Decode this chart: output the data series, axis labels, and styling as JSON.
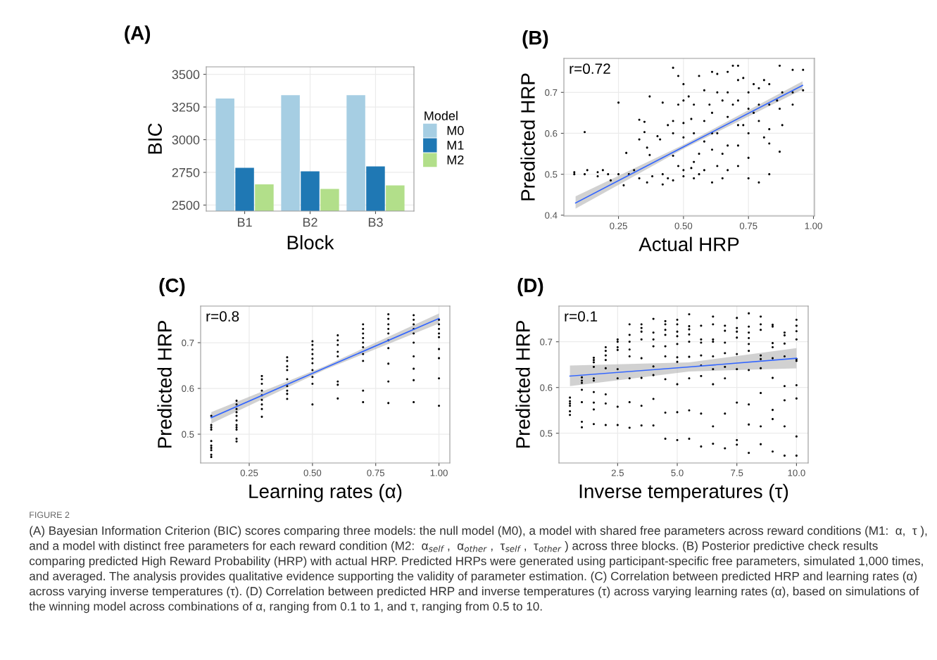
{
  "chart_data": [
    {
      "type": "bar",
      "title": "(A)",
      "xlabel": "Block",
      "ylabel": "BIC",
      "legend_title": "Model",
      "legend": "right",
      "grid": true,
      "categories": [
        "B1",
        "B2",
        "B3"
      ],
      "ylim": [
        2454,
        3557
      ],
      "yticks": [
        2500,
        2750,
        3000,
        3250,
        3500
      ],
      "series": [
        {
          "name": "M0",
          "color": "#a6cee3",
          "values": [
            3315,
            3340,
            3340
          ]
        },
        {
          "name": "M1",
          "color": "#1f78b4",
          "values": [
            2785,
            2758,
            2795
          ]
        },
        {
          "name": "M2",
          "color": "#b2df8a",
          "values": [
            2658,
            2624,
            2651
          ]
        }
      ],
      "annotations": [
        "FIGURE 2",
        "(A) Bayesian Information Criterion (BIC) scores comparing three models: the null model (M0), a model with shared free parameters across reward conditions (M1:  α,  τ ), and a model with distinct free parameters for each reward condition (M2:  α$_{self}$ ,  α$_{other}$ ,  τ$_{self}$ ,  τ$_{other}$ ) across three blocks. (B) Posterior predictive check results comparing predicted High Reward Probability (HRP) with actual HRP. Predicted HRPs were generated using participant-specific free parameters, simulated 1,000 times, and averaged. The analysis provides qualitative evidence supporting the validity of parameter estimation. (C) Correlation between predicted HRP and learning rates (α) across varying inverse temperatures (τ). (D) Correlation between predicted HRP and inverse temperatures (τ) across varying learning rates (α), based on simulations of the winning model across combinations of α, ranging from 0.1 to 1, and τ, ranging from 0.5 to 10."
      ]
    },
    {
      "type": "scatter",
      "title": "(B)",
      "xlabel": "Actual HRP",
      "ylabel": "Predicted HRP",
      "grid": true,
      "xlim": [
        0.04,
        1.004
      ],
      "xticks": [
        {
          "value": 0.25,
          "label": "0.25"
        },
        {
          "value": 0.5,
          "label": "0.50"
        },
        {
          "value": 0.75,
          "label": "0.75"
        },
        {
          "value": 1.0,
          "label": "1.00"
        }
      ],
      "ylim": [
        0.398,
        0.783
      ],
      "yticks": [
        0.4,
        0.5,
        0.6,
        0.7
      ],
      "series": [
        {
          "type": "scatter",
          "color": "#000000",
          "x": [
            0.08,
            0.08,
            0.12,
            0.13,
            0.17,
            0.17,
            0.19,
            0.21,
            0.22,
            0.25,
            0.25,
            0.12,
            0.27,
            0.28,
            0.29,
            0.31,
            0.33,
            0.33,
            0.33,
            0.35,
            0.35,
            0.36,
            0.36,
            0.37,
            0.37,
            0.38,
            0.4,
            0.41,
            0.42,
            0.42,
            0.42,
            0.44,
            0.44,
            0.46,
            0.46,
            0.46,
            0.46,
            0.46,
            0.48,
            0.48,
            0.48,
            0.5,
            0.5,
            0.5,
            0.5,
            0.5,
            0.5,
            0.52,
            0.53,
            0.53,
            0.54,
            0.54,
            0.54,
            0.54,
            0.56,
            0.56,
            0.56,
            0.58,
            0.58,
            0.58,
            0.58,
            0.6,
            0.61,
            0.61,
            0.61,
            0.61,
            0.61,
            0.63,
            0.63,
            0.63,
            0.63,
            0.65,
            0.65,
            0.65,
            0.67,
            0.67,
            0.67,
            0.67,
            0.67,
            0.69,
            0.69,
            0.71,
            0.71,
            0.71,
            0.71,
            0.71,
            0.71,
            0.73,
            0.73,
            0.75,
            0.75,
            0.75,
            0.75,
            0.75,
            0.77,
            0.77,
            0.79,
            0.79,
            0.79,
            0.79,
            0.81,
            0.81,
            0.83,
            0.83,
            0.83,
            0.83,
            0.83,
            0.86,
            0.87,
            0.87,
            0.87,
            0.88,
            0.88,
            0.92,
            0.92,
            0.92,
            0.96,
            0.96
          ],
          "values": [
            0.505,
            0.5,
            0.5,
            0.51,
            0.505,
            0.495,
            0.51,
            0.5,
            0.485,
            0.5,
            0.675,
            0.603,
            0.473,
            0.552,
            0.5,
            0.51,
            0.49,
            0.585,
            0.633,
            0.628,
            0.603,
            0.48,
            0.565,
            0.69,
            0.547,
            0.495,
            0.593,
            0.585,
            0.675,
            0.475,
            0.5,
            0.49,
            0.62,
            0.76,
            0.63,
            0.6,
            0.545,
            0.485,
            0.74,
            0.67,
            0.52,
            0.72,
            0.68,
            0.625,
            0.59,
            0.51,
            0.495,
            0.69,
            0.635,
            0.515,
            0.67,
            0.6,
            0.53,
            0.49,
            0.74,
            0.55,
            0.5,
            0.705,
            0.63,
            0.58,
            0.51,
            0.67,
            0.75,
            0.65,
            0.6,
            0.56,
            0.48,
            0.745,
            0.7,
            0.6,
            0.52,
            0.68,
            0.55,
            0.49,
            0.75,
            0.7,
            0.64,
            0.57,
            0.51,
            0.765,
            0.67,
            0.765,
            0.73,
            0.68,
            0.62,
            0.57,
            0.52,
            0.735,
            0.62,
            0.7,
            0.66,
            0.6,
            0.54,
            0.49,
            0.72,
            0.65,
            0.71,
            0.67,
            0.63,
            0.48,
            0.59,
            0.73,
            0.72,
            0.67,
            0.61,
            0.575,
            0.5,
            0.68,
            0.765,
            0.66,
            0.555,
            0.7,
            0.62,
            0.755,
            0.7,
            0.67,
            0.755,
            0.705
          ]
        },
        {
          "type": "line",
          "color": "#3366ff",
          "x": [
            0.085,
            0.5,
            0.958
          ],
          "values": [
            0.43,
            0.567,
            0.717
          ],
          "lower": [
            0.416,
            0.562,
            0.707
          ],
          "upper": [
            0.446,
            0.572,
            0.727
          ]
        }
      ],
      "annotations": [
        "r=0.72"
      ]
    },
    {
      "type": "scatter",
      "title": "(C)",
      "xlabel": "Learning rates (α)",
      "ylabel": "Predicted HRP",
      "grid": true,
      "xlim": [
        0.058,
        1.043
      ],
      "xticks": [
        0.25,
        {
          "value": 0.5,
          "label": "0.50"
        },
        0.75,
        {
          "value": 1.0,
          "label": "1.00"
        }
      ],
      "ylim": [
        0.437,
        0.78
      ],
      "yticks": [
        0.5,
        0.6,
        0.7
      ],
      "series": [
        {
          "type": "scatter",
          "color": "#000000",
          "x": [
            0.1,
            0.1,
            0.1,
            0.1,
            0.1,
            0.1,
            0.1,
            0.1,
            0.1,
            0.1,
            0.2,
            0.2,
            0.2,
            0.2,
            0.2,
            0.2,
            0.2,
            0.2,
            0.2,
            0.2,
            0.2,
            0.3,
            0.3,
            0.3,
            0.3,
            0.3,
            0.3,
            0.3,
            0.3,
            0.3,
            0.4,
            0.4,
            0.4,
            0.4,
            0.4,
            0.4,
            0.4,
            0.4,
            0.4,
            0.5,
            0.5,
            0.5,
            0.5,
            0.5,
            0.5,
            0.5,
            0.5,
            0.5,
            0.5,
            0.6,
            0.6,
            0.6,
            0.6,
            0.6,
            0.6,
            0.6,
            0.6,
            0.7,
            0.7,
            0.7,
            0.7,
            0.7,
            0.7,
            0.7,
            0.7,
            0.7,
            0.7,
            0.8,
            0.8,
            0.8,
            0.8,
            0.8,
            0.8,
            0.8,
            0.8,
            0.8,
            0.8,
            0.9,
            0.9,
            0.9,
            0.9,
            0.9,
            0.9,
            0.9,
            0.9,
            0.9,
            0.9,
            1.0,
            1.0,
            1.0,
            1.0,
            1.0,
            1.0,
            1.0,
            1.0,
            1.0
          ],
          "values": [
            0.54,
            0.52,
            0.515,
            0.51,
            0.485,
            0.475,
            0.47,
            0.465,
            0.455,
            0.45,
            0.573,
            0.565,
            0.555,
            0.548,
            0.54,
            0.53,
            0.52,
            0.515,
            0.51,
            0.49,
            0.484,
            0.627,
            0.62,
            0.61,
            0.595,
            0.585,
            0.575,
            0.565,
            0.555,
            0.538,
            0.668,
            0.66,
            0.648,
            0.64,
            0.62,
            0.605,
            0.595,
            0.588,
            0.577,
            0.703,
            0.695,
            0.685,
            0.675,
            0.665,
            0.655,
            0.64,
            0.625,
            0.61,
            0.565,
            0.716,
            0.705,
            0.695,
            0.68,
            0.67,
            0.615,
            0.608,
            0.578,
            0.74,
            0.73,
            0.72,
            0.71,
            0.7,
            0.69,
            0.675,
            0.66,
            0.595,
            0.57,
            0.762,
            0.752,
            0.74,
            0.73,
            0.72,
            0.705,
            0.688,
            0.654,
            0.615,
            0.568,
            0.76,
            0.75,
            0.74,
            0.73,
            0.72,
            0.7,
            0.67,
            0.643,
            0.618,
            0.57,
            0.75,
            0.74,
            0.73,
            0.72,
            0.712,
            0.686,
            0.666,
            0.622,
            0.562
          ]
        },
        {
          "type": "line",
          "color": "#3366ff",
          "x": [
            0.1,
            0.55,
            1.0
          ],
          "values": [
            0.536,
            0.645,
            0.753
          ],
          "lower": [
            0.523,
            0.641,
            0.742
          ],
          "upper": [
            0.548,
            0.649,
            0.764
          ]
        }
      ],
      "annotations": [
        "r=0.8"
      ]
    },
    {
      "type": "scatter",
      "title": "(D)",
      "xlabel": "Inverse temperatures (τ)",
      "ylabel": "Predicted HRP",
      "grid": true,
      "xlim": [
        0.04,
        10.49
      ],
      "xticks": [
        2.5,
        {
          "value": 5,
          "label": "5.0"
        },
        7.5,
        {
          "value": 10,
          "label": "10.0"
        }
      ],
      "ylim": [
        0.435,
        0.778
      ],
      "yticks": [
        0.5,
        0.6,
        0.7
      ],
      "series": [
        {
          "type": "scatter",
          "color": "#000000",
          "x": [
            0.5,
            0.5,
            0.5,
            0.5,
            0.5,
            0.5,
            1.0,
            1.0,
            1.0,
            1.0,
            1.0,
            1.0,
            1.0,
            1.5,
            1.5,
            1.5,
            1.5,
            1.5,
            1.5,
            1.5,
            1.5,
            1.5,
            1.5,
            2.0,
            2.0,
            2.0,
            2.0,
            2.0,
            2.0,
            2.0,
            2.0,
            2.5,
            2.5,
            2.5,
            2.5,
            2.5,
            2.5,
            2.5,
            2.5,
            3.0,
            3.0,
            3.0,
            3.0,
            3.0,
            3.0,
            3.0,
            3.0,
            3.5,
            3.5,
            3.5,
            3.5,
            3.5,
            3.5,
            3.5,
            3.5,
            4.0,
            4.0,
            4.0,
            4.0,
            4.0,
            4.0,
            4.0,
            4.0,
            4.5,
            4.5,
            4.5,
            4.5,
            4.5,
            4.5,
            4.5,
            4.5,
            4.5,
            5.0,
            5.0,
            5.0,
            5.0,
            5.0,
            5.0,
            5.0,
            5.0,
            5.0,
            5.0,
            5.5,
            5.5,
            5.5,
            5.5,
            5.5,
            5.5,
            5.5,
            5.5,
            5.5,
            6.0,
            6.0,
            6.0,
            6.0,
            6.0,
            6.0,
            6.0,
            6.0,
            6.5,
            6.5,
            6.5,
            6.5,
            6.5,
            6.5,
            6.5,
            6.5,
            6.5,
            7.0,
            7.0,
            7.0,
            7.0,
            7.0,
            7.0,
            7.0,
            7.0,
            7.5,
            7.5,
            7.5,
            7.5,
            7.5,
            7.5,
            7.5,
            7.5,
            7.5,
            8.0,
            8.0,
            8.0,
            8.0,
            8.0,
            8.0,
            8.0,
            8.0,
            8.0,
            8.0,
            8.5,
            8.5,
            8.5,
            8.5,
            8.5,
            8.5,
            8.5,
            8.5,
            8.5,
            9.0,
            9.0,
            9.0,
            9.0,
            9.0,
            9.0,
            9.0,
            9.0,
            9.0,
            9.5,
            9.5,
            9.5,
            9.5,
            9.5,
            9.5,
            9.5,
            9.5,
            10.0,
            10.0,
            10.0,
            10.0,
            10.0,
            10.0,
            10.0,
            10.0,
            10.0,
            10.0
          ],
          "values": [
            0.578,
            0.57,
            0.565,
            0.56,
            0.548,
            0.54,
            0.622,
            0.615,
            0.61,
            0.595,
            0.568,
            0.525,
            0.513,
            0.665,
            0.66,
            0.655,
            0.645,
            0.62,
            0.615,
            0.59,
            0.567,
            0.552,
            0.52,
            0.688,
            0.68,
            0.67,
            0.66,
            0.642,
            0.585,
            0.565,
            0.518,
            0.705,
            0.7,
            0.688,
            0.682,
            0.64,
            0.62,
            0.558,
            0.518,
            0.738,
            0.715,
            0.7,
            0.683,
            0.668,
            0.62,
            0.568,
            0.512,
            0.738,
            0.73,
            0.722,
            0.705,
            0.664,
            0.621,
            0.56,
            0.517,
            0.75,
            0.72,
            0.705,
            0.69,
            0.646,
            0.627,
            0.575,
            0.517,
            0.745,
            0.738,
            0.726,
            0.715,
            0.69,
            0.668,
            0.618,
            0.545,
            0.488,
            0.748,
            0.738,
            0.722,
            0.712,
            0.695,
            0.666,
            0.656,
            0.607,
            0.546,
            0.485,
            0.76,
            0.734,
            0.727,
            0.716,
            0.7,
            0.667,
            0.62,
            0.55,
            0.488,
            0.735,
            0.705,
            0.698,
            0.67,
            0.648,
            0.625,
            0.543,
            0.471,
            0.755,
            0.738,
            0.705,
            0.7,
            0.668,
            0.64,
            0.607,
            0.515,
            0.477,
            0.735,
            0.724,
            0.698,
            0.675,
            0.645,
            0.62,
            0.543,
            0.467,
            0.752,
            0.73,
            0.722,
            0.709,
            0.673,
            0.64,
            0.567,
            0.485,
            0.475,
            0.762,
            0.733,
            0.72,
            0.708,
            0.695,
            0.68,
            0.638,
            0.563,
            0.519,
            0.457,
            0.755,
            0.738,
            0.726,
            0.67,
            0.662,
            0.642,
            0.588,
            0.515,
            0.476,
            0.737,
            0.733,
            0.697,
            0.688,
            0.664,
            0.621,
            0.551,
            0.531,
            0.46,
            0.72,
            0.714,
            0.696,
            0.668,
            0.603,
            0.572,
            0.515,
            0.451,
            0.748,
            0.735,
            0.723,
            0.705,
            0.662,
            0.658,
            0.605,
            0.576,
            0.493,
            0.451
          ]
        },
        {
          "type": "line",
          "color": "#3366ff",
          "x": [
            0.5,
            5.5,
            10.0
          ],
          "values": [
            0.625,
            0.645,
            0.664
          ],
          "lower": [
            0.603,
            0.635,
            0.642
          ],
          "upper": [
            0.648,
            0.655,
            0.686
          ]
        }
      ],
      "annotations": [
        "r=0.1"
      ]
    }
  ]
}
